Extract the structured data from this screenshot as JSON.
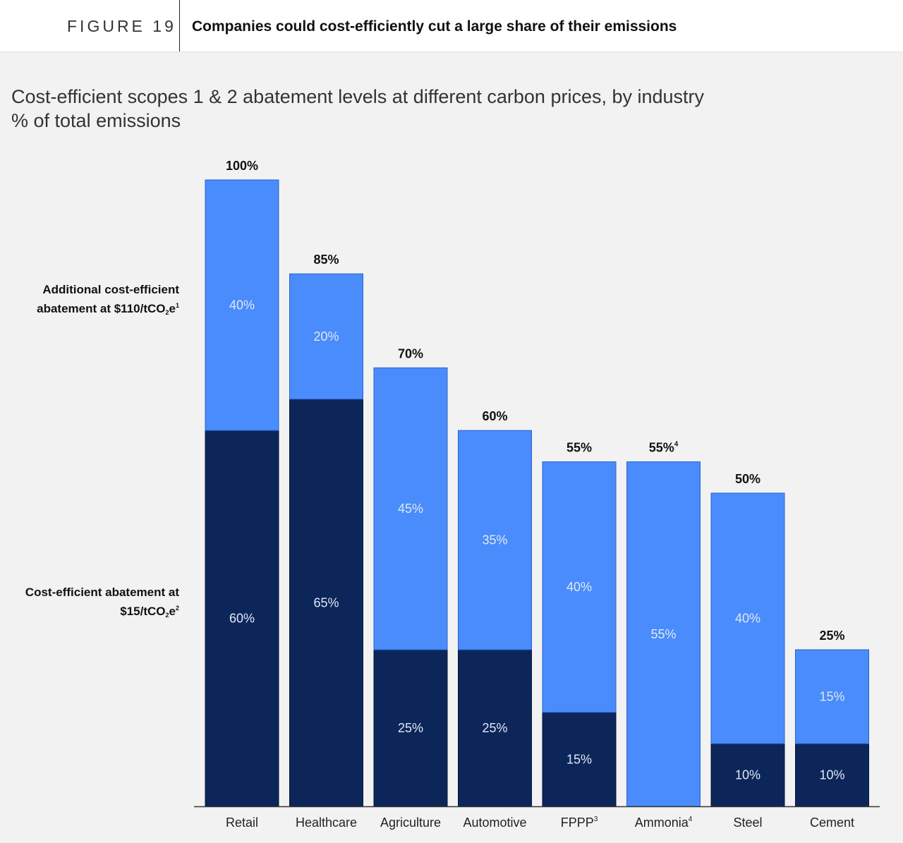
{
  "header": {
    "figure_label": "FIGURE 19",
    "title": "Companies could cost-efficiently cut a large share of their emissions"
  },
  "colors": {
    "additional": "#4a8cfb",
    "base": "#0d2659",
    "axis": "#333333"
  },
  "chart_data": {
    "type": "bar",
    "stacked": true,
    "title": "Cost-efficient scopes 1 & 2 abatement levels at different carbon prices, by industry",
    "ylabel": "% of total emissions",
    "ylim": [
      0,
      100
    ],
    "categories": [
      "Retail",
      "Healthcare",
      "Agriculture",
      "Automotive",
      "FPPP",
      "Ammonia",
      "Steel",
      "Cement"
    ],
    "category_footnotes": [
      "",
      "",
      "",
      "",
      "3",
      "4",
      "",
      ""
    ],
    "series": [
      {
        "name_text": "Cost-efficient abatement at $15/tCO",
        "name_sub": "2",
        "name_tail": "e",
        "name_sup": "2",
        "values": [
          60,
          65,
          25,
          25,
          15,
          0,
          10,
          10
        ],
        "labels": [
          "60%",
          "65%",
          "25%",
          "25%",
          "15%",
          "",
          "10%",
          "10%"
        ]
      },
      {
        "name_text": "Additional cost-efficient abatement at $110/tCO",
        "name_sub": "2",
        "name_tail": "e",
        "name_sup": "1",
        "values": [
          40,
          20,
          45,
          35,
          40,
          55,
          40,
          15
        ],
        "labels": [
          "40%",
          "20%",
          "45%",
          "35%",
          "40%",
          "55%",
          "40%",
          "15%"
        ]
      }
    ],
    "totals": [
      "100%",
      "85%",
      "70%",
      "60%",
      "55%",
      "55%",
      "50%",
      "25%"
    ],
    "total_footnotes": [
      "",
      "",
      "",
      "",
      "",
      "4",
      "",
      ""
    ]
  }
}
